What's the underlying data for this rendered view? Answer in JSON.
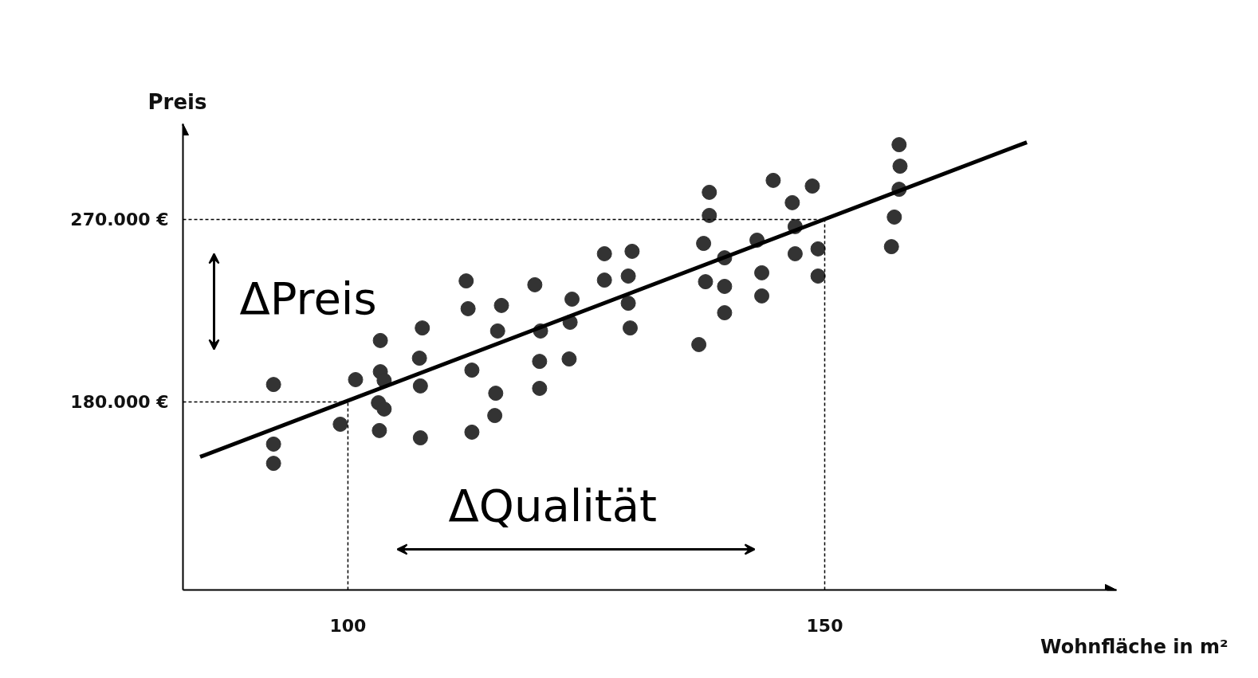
{
  "chart_data": {
    "type": "scatter",
    "xlabel": "Wohnfläche in m²",
    "ylabel": "Preis",
    "xlim": [
      82.7,
      180.6
    ],
    "ylim": [
      87250,
      317160
    ],
    "xticks": [
      100,
      150
    ],
    "yticks": [
      {
        "value": 180000,
        "label": "180.000 €"
      },
      {
        "value": 270000,
        "label": "270.000 €"
      }
    ],
    "grid": false,
    "series": [
      {
        "type": "scatter",
        "color": "#333333",
        "marker": "circle",
        "x": [
          92.2,
          92.2,
          92.2,
          99.2,
          100.8,
          103.4,
          103.4,
          103.8,
          103.2,
          103.8,
          103.3,
          107.8,
          107.5,
          107.6,
          107.6,
          112.4,
          112.6,
          113.0,
          113.0,
          116.1,
          115.7,
          115.5,
          115.4,
          119.6,
          120.2,
          120.1,
          120.1,
          123.5,
          123.3,
          123.2,
          126.9,
          126.9,
          129.8,
          129.4,
          129.4,
          129.6,
          136.8,
          137.3,
          137.5,
          137.9,
          137.9,
          139.5,
          139.5,
          139.5,
          142.9,
          143.4,
          143.4,
          144.6,
          146.6,
          146.9,
          146.9,
          148.7,
          149.3,
          149.3,
          157.8,
          157.9,
          157.8,
          157.3,
          157.0
        ],
        "values": [
          188600,
          159200,
          149700,
          169000,
          191000,
          210300,
          194900,
          190600,
          179600,
          176500,
          165900,
          216500,
          201600,
          187900,
          162300,
          239700,
          226000,
          195700,
          165100,
          227600,
          215000,
          184300,
          173300,
          237800,
          215000,
          200000,
          186700,
          230700,
          219300,
          201200,
          253100,
          240100,
          254300,
          242100,
          228700,
          216500,
          208300,
          258200,
          239300,
          283400,
          272000,
          251100,
          237000,
          224000,
          259800,
          243700,
          232300,
          289300,
          278300,
          266500,
          253100,
          286500,
          255500,
          242100,
          306900,
          296300,
          284900,
          271200,
          256600
        ]
      },
      {
        "type": "line",
        "marker": "none",
        "color": "#000000",
        "x": [
          84.5,
          171.2
        ],
        "values": [
          152900,
          308100
        ]
      }
    ],
    "ref_lines": [
      {
        "axis": "y",
        "value": 180000,
        "color": "#000000",
        "line_style": "dashed"
      },
      {
        "axis": "y",
        "value": 270000,
        "color": "#000000",
        "line_style": "dashed"
      },
      {
        "axis": "x",
        "value": 100,
        "color": "#000000",
        "line_style": "dashed"
      },
      {
        "axis": "x",
        "value": 150,
        "color": "#000000",
        "line_style": "dashed"
      }
    ],
    "annotations": [
      "ΔPreis",
      "ΔQualität"
    ]
  }
}
